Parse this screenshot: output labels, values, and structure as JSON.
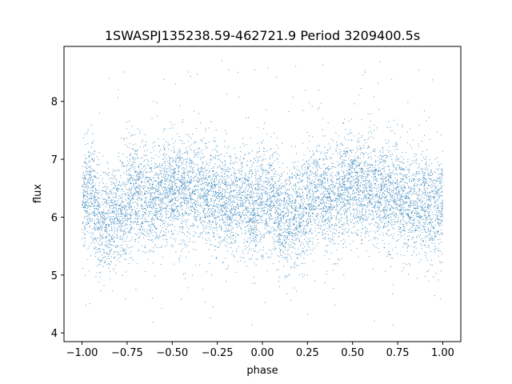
{
  "chart_data": {
    "type": "scatter",
    "title": "1SWASPJ135238.59-462721.9 Period 3209400.5s",
    "xlabel": "phase",
    "ylabel": "flux",
    "xlim": [
      -1.1,
      1.1
    ],
    "ylim": [
      3.85,
      8.95
    ],
    "xticks": [
      -1.0,
      -0.75,
      -0.5,
      -0.25,
      0.0,
      0.25,
      0.5,
      0.75,
      1.0
    ],
    "xtick_labels": [
      "−1.00",
      "−0.75",
      "−0.50",
      "−0.25",
      "0.00",
      "0.25",
      "0.50",
      "0.75",
      "1.00"
    ],
    "yticks": [
      4,
      5,
      6,
      7,
      8
    ],
    "ytick_labels": [
      "4",
      "5",
      "6",
      "7",
      "8"
    ],
    "grid": false,
    "color": "#1f77b4",
    "profile": {
      "phase": [
        -1.0,
        -0.95,
        -0.9,
        -0.85,
        -0.8,
        -0.75,
        -0.7,
        -0.65,
        -0.6,
        -0.55,
        -0.5,
        -0.45,
        -0.4,
        -0.35,
        -0.3,
        -0.25,
        -0.2,
        -0.15,
        -0.1,
        -0.05,
        0.0,
        0.05,
        0.1,
        0.15,
        0.2,
        0.25,
        0.3,
        0.35,
        0.4,
        0.45,
        0.5,
        0.55,
        0.6,
        0.65,
        0.7,
        0.75,
        0.8,
        0.85,
        0.9,
        0.95,
        1.0
      ],
      "median_flux": [
        6.3,
        6.45,
        5.9,
        6.0,
        6.05,
        6.25,
        6.4,
        6.35,
        6.3,
        6.45,
        6.5,
        6.45,
        6.5,
        6.45,
        6.4,
        6.35,
        6.3,
        6.25,
        6.3,
        6.1,
        6.3,
        6.35,
        5.9,
        6.0,
        6.05,
        6.25,
        6.4,
        6.35,
        6.3,
        6.45,
        6.5,
        6.45,
        6.5,
        6.45,
        6.4,
        6.35,
        6.3,
        6.25,
        6.3,
        6.1,
        6.3
      ],
      "scatter_width": 0.45,
      "outlier_range": [
        4.1,
        8.75
      ]
    },
    "n_points": 9000
  }
}
